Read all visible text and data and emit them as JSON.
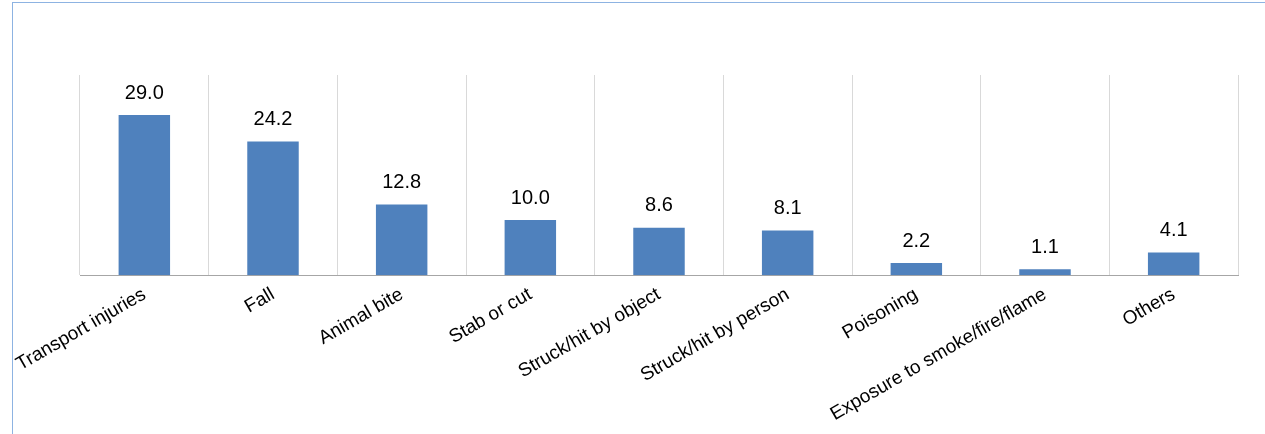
{
  "chart_data": {
    "type": "bar",
    "categories": [
      "Transport injuries",
      "Fall",
      "Animal bite",
      "Stab or cut",
      "Struck/hit by object",
      "Struck/hit by person",
      "Poisoning",
      "Exposure to smoke/fire/flame",
      "Others"
    ],
    "values": [
      29.0,
      24.2,
      12.8,
      10.0,
      8.6,
      8.1,
      2.2,
      1.1,
      4.1
    ],
    "value_labels": [
      "29.0",
      "24.2",
      "12.8",
      "10.0",
      "8.6",
      "8.1",
      "2.2",
      "1.1",
      "4.1"
    ],
    "color": "#4f81bd",
    "grid": "x",
    "legend": false,
    "tick_labels": "x"
  }
}
